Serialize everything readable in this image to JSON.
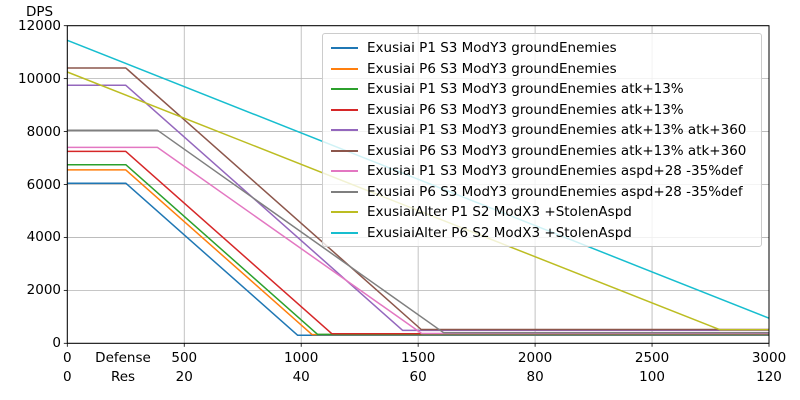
{
  "chart_data": {
    "type": "line",
    "title": "",
    "ylabel": "DPS",
    "grid": true,
    "grid_color": "#b3b3b3",
    "legend_position": "upper-right",
    "x_axis": {
      "range": [
        0,
        3000
      ],
      "name_row1": "Defense",
      "name_row2": "Res",
      "defense_ticks": [
        0,
        500,
        1000,
        1500,
        2000,
        2500,
        3000
      ],
      "res_ticks": [
        0,
        20,
        40,
        60,
        80,
        100,
        120
      ]
    },
    "y_axis": {
      "range": [
        0,
        12000
      ],
      "ticks": [
        0,
        2000,
        4000,
        6000,
        8000,
        10000,
        12000
      ]
    },
    "series": [
      {
        "name": "Exusiai P1 S3 ModY3 groundEnemies",
        "color": "#1f77b4",
        "points": [
          [
            0,
            6050
          ],
          [
            250,
            6050
          ],
          [
            985,
            302
          ],
          [
            3000,
            302
          ]
        ]
      },
      {
        "name": "Exusiai P6 S3 ModY3 groundEnemies",
        "color": "#ff7f0e",
        "points": [
          [
            0,
            6550
          ],
          [
            250,
            6550
          ],
          [
            1046,
            328
          ],
          [
            3000,
            328
          ]
        ]
      },
      {
        "name": "Exusiai P1 S3 ModY3 groundEnemies atk+13%",
        "color": "#2ca02c",
        "points": [
          [
            0,
            6750
          ],
          [
            250,
            6750
          ],
          [
            1070,
            338
          ],
          [
            3000,
            338
          ]
        ]
      },
      {
        "name": "Exusiai P6 S3 ModY3 groundEnemies atk+13%",
        "color": "#d62728",
        "points": [
          [
            0,
            7250
          ],
          [
            250,
            7250
          ],
          [
            1131,
            363
          ],
          [
            3000,
            363
          ]
        ]
      },
      {
        "name": "Exusiai P1 S3 ModY3 groundEnemies atk+13% atk+360",
        "color": "#9467bd",
        "points": [
          [
            0,
            9750
          ],
          [
            250,
            9750
          ],
          [
            1434,
            488
          ],
          [
            3000,
            488
          ]
        ]
      },
      {
        "name": "Exusiai P6 S3 ModY3 groundEnemies atk+13% atk+360",
        "color": "#8c564b",
        "points": [
          [
            0,
            10400
          ],
          [
            250,
            10400
          ],
          [
            1513,
            520
          ],
          [
            3000,
            520
          ]
        ]
      },
      {
        "name": "Exusiai P1 S3 ModY3 groundEnemies aspd+28 -35%def",
        "color": "#e377c2",
        "points": [
          [
            0,
            7400
          ],
          [
            385,
            7400
          ],
          [
            1515,
            370
          ],
          [
            3000,
            370
          ]
        ]
      },
      {
        "name": "Exusiai P6 S3 ModY3 groundEnemies aspd+28 -35%def",
        "color": "#7f7f7f",
        "points": [
          [
            0,
            8050
          ],
          [
            385,
            8050
          ],
          [
            1609,
            402
          ],
          [
            3000,
            402
          ]
        ]
      },
      {
        "name": "ExusiaiAlter P1 S2 ModX3 +StolenAspd",
        "color": "#bcbd22",
        "points": [
          [
            0,
            10250
          ],
          [
            2790,
            512
          ],
          [
            3000,
            512
          ]
        ]
      },
      {
        "name": "ExusiaiAlter P6 S2 ModX3 +StolenAspd",
        "color": "#17becf",
        "points": [
          [
            0,
            11450
          ],
          [
            3000,
            950
          ]
        ]
      }
    ]
  }
}
